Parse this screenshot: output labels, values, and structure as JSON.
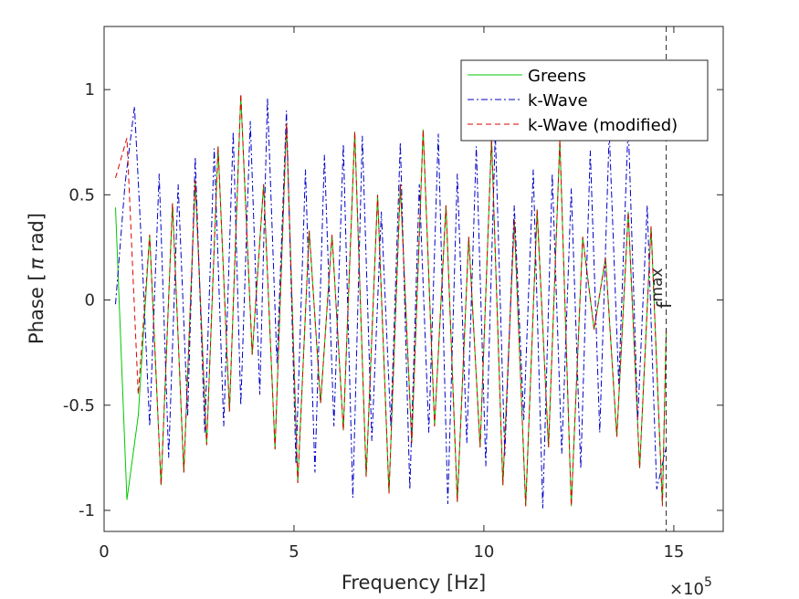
{
  "chart_data": {
    "type": "line",
    "title": "",
    "xlabel": "Frequency [Hz]",
    "ylabel_main": "Phase [",
    "ylabel_symbol": "π",
    "ylabel_unit": " rad]",
    "x_multiplier_base": "×10",
    "x_multiplier_exp": "5",
    "xlim": [
      0,
      16.3
    ],
    "ylim": [
      -1.1,
      1.3
    ],
    "xticks": [
      0,
      5,
      10,
      15
    ],
    "xtick_labels": [
      "0",
      "5",
      "10",
      "15"
    ],
    "yticks": [
      -1,
      -0.5,
      0,
      0.5,
      1
    ],
    "ytick_labels": [
      "-1",
      "-0.5",
      "0",
      "0.5",
      "1"
    ],
    "grid": false,
    "legend_position": "top-right",
    "fmax": {
      "x": 14.8,
      "label_base": "f",
      "label_sub": "max"
    },
    "series": [
      {
        "name": "Greens",
        "color": "#00c800",
        "dash": "solid",
        "x": [
          0.3,
          0.6,
          0.9,
          1.2,
          1.5,
          1.8,
          2.1,
          2.4,
          2.7,
          3.0,
          3.3,
          3.6,
          3.9,
          4.2,
          4.5,
          4.8,
          5.1,
          5.4,
          5.7,
          6.0,
          6.3,
          6.6,
          6.9,
          7.2,
          7.5,
          7.8,
          8.1,
          8.4,
          8.7,
          9.0,
          9.3,
          9.6,
          9.9,
          10.2,
          10.5,
          10.8,
          11.1,
          11.4,
          11.7,
          12.0,
          12.3,
          12.6,
          12.9,
          13.2,
          13.5,
          13.8,
          14.1,
          14.4,
          14.7,
          14.8
        ],
        "y": [
          0.44,
          -0.95,
          -0.55,
          0.31,
          -0.88,
          0.46,
          -0.82,
          0.57,
          -0.69,
          0.73,
          -0.53,
          0.97,
          -0.26,
          0.55,
          -0.71,
          0.84,
          -0.87,
          0.33,
          -0.49,
          0.31,
          -0.62,
          0.8,
          -0.84,
          0.5,
          -0.92,
          0.55,
          -0.68,
          0.81,
          -0.6,
          0.45,
          -0.96,
          0.3,
          -0.7,
          0.77,
          -0.88,
          0.38,
          -0.98,
          0.43,
          -0.7,
          0.76,
          -0.98,
          0.3,
          -0.14,
          0.2,
          -0.65,
          0.42,
          -0.8,
          0.35,
          -0.97,
          -0.15
        ]
      },
      {
        "name": "k-Wave",
        "color": "#0000c8",
        "dash": "dashdot",
        "x": [
          0.3,
          0.55,
          0.8,
          1.0,
          1.2,
          1.45,
          1.7,
          1.95,
          2.2,
          2.4,
          2.65,
          2.9,
          3.15,
          3.4,
          3.6,
          3.85,
          4.1,
          4.3,
          4.55,
          4.8,
          5.05,
          5.3,
          5.55,
          5.8,
          6.05,
          6.3,
          6.55,
          6.8,
          7.05,
          7.3,
          7.55,
          7.8,
          8.05,
          8.3,
          8.55,
          8.8,
          9.05,
          9.3,
          9.55,
          9.8,
          10.05,
          10.3,
          10.55,
          10.8,
          11.05,
          11.3,
          11.55,
          11.8,
          12.05,
          12.3,
          12.55,
          12.8,
          13.05,
          13.3,
          13.55,
          13.8,
          14.05,
          14.3,
          14.55,
          14.8
        ],
        "y": [
          -0.02,
          0.55,
          0.92,
          0.2,
          -0.6,
          0.6,
          -0.75,
          0.55,
          -0.55,
          0.68,
          -0.63,
          0.72,
          -0.6,
          0.8,
          -0.5,
          0.85,
          -0.45,
          0.96,
          -0.3,
          0.9,
          -0.78,
          0.62,
          -0.82,
          0.69,
          -0.6,
          0.74,
          -0.94,
          0.78,
          -0.67,
          0.42,
          -0.6,
          0.75,
          -0.9,
          0.55,
          -0.63,
          0.79,
          -0.97,
          0.6,
          -0.68,
          0.73,
          -0.79,
          0.8,
          -0.74,
          0.45,
          -0.57,
          0.62,
          -0.99,
          0.6,
          -0.73,
          0.53,
          -0.8,
          0.71,
          -0.63,
          0.8,
          -0.4,
          0.84,
          -0.57,
          0.45,
          -0.9,
          -0.7
        ]
      },
      {
        "name": "k-Wave (modified)",
        "color": "#dc0000",
        "dash": "dashed",
        "x": [
          0.3,
          0.6,
          0.9,
          1.2,
          1.5,
          1.8,
          2.1,
          2.4,
          2.7,
          3.0,
          3.3,
          3.6,
          3.9,
          4.2,
          4.5,
          4.8,
          5.1,
          5.4,
          5.7,
          6.0,
          6.3,
          6.6,
          6.9,
          7.2,
          7.5,
          7.8,
          8.1,
          8.4,
          8.7,
          9.0,
          9.3,
          9.6,
          9.9,
          10.2,
          10.5,
          10.8,
          11.1,
          11.4,
          11.7,
          12.0,
          12.3,
          12.6,
          12.9,
          13.2,
          13.5,
          13.8,
          14.1,
          14.4,
          14.7,
          14.8
        ],
        "y": [
          0.58,
          0.77,
          -0.45,
          0.31,
          -0.88,
          0.46,
          -0.82,
          0.57,
          -0.69,
          0.73,
          -0.53,
          0.98,
          -0.26,
          0.55,
          -0.71,
          0.84,
          -0.87,
          0.33,
          -0.49,
          0.31,
          -0.62,
          0.8,
          -0.84,
          0.5,
          -0.92,
          0.55,
          -0.68,
          0.81,
          -0.6,
          0.45,
          -0.96,
          0.3,
          -0.7,
          0.77,
          -0.88,
          0.38,
          -0.98,
          0.43,
          -0.7,
          0.76,
          -0.98,
          0.3,
          -0.14,
          0.2,
          -0.65,
          0.42,
          -0.8,
          0.35,
          -0.98,
          -0.12
        ]
      }
    ]
  }
}
